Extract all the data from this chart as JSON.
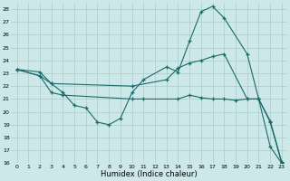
{
  "xlabel": "Humidex (Indice chaleur)",
  "background_color": "#cce8e8",
  "grid_color": "#aacccc",
  "line_color": "#1a6b6b",
  "xlim": [
    -0.5,
    23.5
  ],
  "ylim": [
    16,
    28.5
  ],
  "xticks": [
    0,
    1,
    2,
    3,
    4,
    5,
    6,
    7,
    8,
    9,
    10,
    11,
    12,
    13,
    14,
    15,
    16,
    17,
    18,
    19,
    20,
    21,
    22,
    23
  ],
  "yticks": [
    16,
    17,
    18,
    19,
    20,
    21,
    22,
    23,
    24,
    25,
    26,
    27,
    28
  ],
  "line1_x": [
    0,
    2,
    3,
    4,
    5,
    6,
    7,
    8,
    9,
    10,
    11,
    13,
    14,
    15,
    16,
    17,
    18,
    20,
    21,
    22,
    23
  ],
  "line1_y": [
    23.3,
    23.1,
    22.2,
    21.5,
    20.5,
    20.3,
    19.2,
    19.0,
    19.5,
    21.5,
    22.5,
    23.5,
    23.1,
    25.5,
    27.8,
    28.2,
    27.3,
    24.5,
    21.0,
    17.3,
    16.0
  ],
  "line2_x": [
    0,
    2,
    3,
    10,
    13,
    14,
    15,
    16,
    17,
    18,
    20,
    21,
    22,
    23
  ],
  "line2_y": [
    23.3,
    22.8,
    22.2,
    22.0,
    22.5,
    23.4,
    23.8,
    24.0,
    24.3,
    24.5,
    21.0,
    21.0,
    19.2,
    16.0
  ],
  "line3_x": [
    0,
    2,
    3,
    4,
    10,
    11,
    14,
    15,
    16,
    17,
    18,
    19,
    20,
    21,
    22,
    23
  ],
  "line3_y": [
    23.3,
    22.8,
    21.5,
    21.3,
    21.0,
    21.0,
    21.0,
    21.3,
    21.1,
    21.0,
    21.0,
    20.9,
    21.0,
    21.0,
    19.3,
    16.1
  ]
}
